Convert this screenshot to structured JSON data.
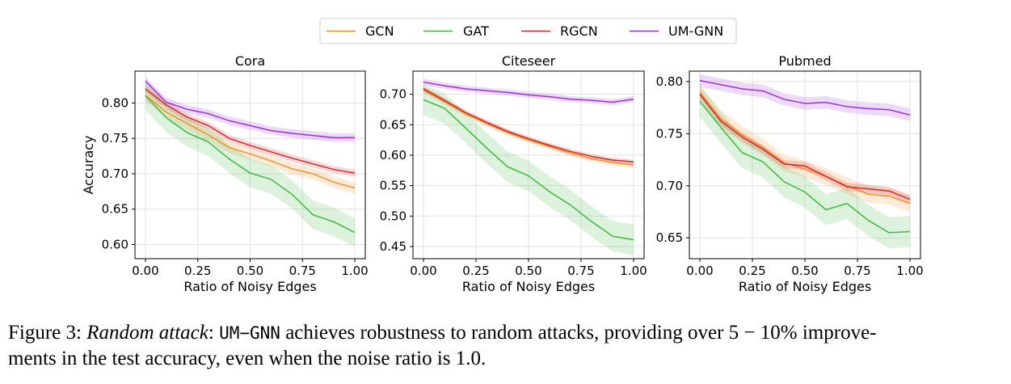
{
  "legend": {
    "entries": [
      {
        "name": "GCN",
        "color": "#f28e2b"
      },
      {
        "name": "GAT",
        "color": "#3cb93c"
      },
      {
        "name": "RGCN",
        "color": "#d62728"
      },
      {
        "name": "UM-GNN",
        "color": "#9b30d9"
      }
    ]
  },
  "chart_data": [
    {
      "type": "line",
      "title": "Cora",
      "xlabel": "Ratio of Noisy Edges",
      "ylabel": "Accuracy",
      "xlim": [
        -0.05,
        1.05
      ],
      "ylim": [
        0.58,
        0.845
      ],
      "xticks": [
        0.0,
        0.25,
        0.5,
        0.75,
        1.0
      ],
      "xtick_labels": [
        "0.00",
        "0.25",
        "0.50",
        "0.75",
        "1.00"
      ],
      "yticks": [
        0.6,
        0.65,
        0.7,
        0.75,
        0.8
      ],
      "ytick_labels": [
        "0.60",
        "0.65",
        "0.70",
        "0.75",
        "0.80"
      ],
      "grid": true,
      "x": [
        0.0,
        0.1,
        0.2,
        0.3,
        0.4,
        0.5,
        0.6,
        0.7,
        0.8,
        0.9,
        1.0
      ],
      "series": [
        {
          "name": "GCN",
          "color": "#f28e2b",
          "values": [
            0.811,
            0.787,
            0.771,
            0.755,
            0.737,
            0.728,
            0.718,
            0.707,
            0.7,
            0.688,
            0.68
          ],
          "band": 0.008
        },
        {
          "name": "GAT",
          "color": "#3cb93c",
          "values": [
            0.81,
            0.779,
            0.758,
            0.745,
            0.721,
            0.701,
            0.692,
            0.671,
            0.642,
            0.632,
            0.617
          ],
          "band": 0.02
        },
        {
          "name": "RGCN",
          "color": "#d62728",
          "values": [
            0.82,
            0.797,
            0.78,
            0.768,
            0.75,
            0.74,
            0.731,
            0.722,
            0.714,
            0.706,
            0.701
          ],
          "band": 0.005
        },
        {
          "name": "UM-GNN",
          "color": "#9b30d9",
          "values": [
            0.831,
            0.801,
            0.791,
            0.785,
            0.775,
            0.768,
            0.761,
            0.757,
            0.754,
            0.751,
            0.751
          ],
          "band": 0.006
        }
      ]
    },
    {
      "type": "line",
      "title": "Citeseer",
      "xlabel": "Ratio of Noisy Edges",
      "ylabel": "",
      "xlim": [
        -0.05,
        1.05
      ],
      "ylim": [
        0.43,
        0.738
      ],
      "xticks": [
        0.0,
        0.25,
        0.5,
        0.75,
        1.0
      ],
      "xtick_labels": [
        "0.00",
        "0.25",
        "0.50",
        "0.75",
        "1.00"
      ],
      "yticks": [
        0.45,
        0.5,
        0.55,
        0.6,
        0.65,
        0.7
      ],
      "ytick_labels": [
        "0.45",
        "0.50",
        "0.55",
        "0.60",
        "0.65",
        "0.70"
      ],
      "grid": true,
      "x": [
        0.0,
        0.1,
        0.2,
        0.3,
        0.4,
        0.5,
        0.6,
        0.7,
        0.8,
        0.9,
        1.0
      ],
      "series": [
        {
          "name": "GCN",
          "color": "#f28e2b",
          "values": [
            0.707,
            0.688,
            0.668,
            0.652,
            0.637,
            0.625,
            0.614,
            0.603,
            0.594,
            0.588,
            0.584
          ],
          "band": 0.005
        },
        {
          "name": "GAT",
          "color": "#3cb93c",
          "values": [
            0.691,
            0.677,
            0.645,
            0.612,
            0.581,
            0.566,
            0.54,
            0.518,
            0.491,
            0.467,
            0.461
          ],
          "band": 0.025
        },
        {
          "name": "RGCN",
          "color": "#d62728",
          "values": [
            0.709,
            0.69,
            0.67,
            0.654,
            0.639,
            0.627,
            0.616,
            0.606,
            0.598,
            0.592,
            0.589
          ],
          "band": 0.004
        },
        {
          "name": "UM-GNN",
          "color": "#9b30d9",
          "values": [
            0.72,
            0.714,
            0.709,
            0.706,
            0.703,
            0.699,
            0.696,
            0.692,
            0.69,
            0.687,
            0.692
          ],
          "band": 0.005
        }
      ]
    },
    {
      "type": "line",
      "title": "Pubmed",
      "xlabel": "Ratio of Noisy Edges",
      "ylabel": "",
      "xlim": [
        -0.05,
        1.05
      ],
      "ylim": [
        0.63,
        0.81
      ],
      "xticks": [
        0.0,
        0.25,
        0.5,
        0.75,
        1.0
      ],
      "xtick_labels": [
        "0.00",
        "0.25",
        "0.50",
        "0.75",
        "1.00"
      ],
      "yticks": [
        0.65,
        0.7,
        0.75,
        0.8
      ],
      "ytick_labels": [
        "0.65",
        "0.70",
        "0.75",
        "0.80"
      ],
      "grid": true,
      "x": [
        0.0,
        0.1,
        0.2,
        0.3,
        0.4,
        0.5,
        0.6,
        0.7,
        0.8,
        0.9,
        1.0
      ],
      "series": [
        {
          "name": "GCN",
          "color": "#f28e2b",
          "values": [
            0.789,
            0.764,
            0.749,
            0.737,
            0.722,
            0.716,
            0.709,
            0.7,
            0.692,
            0.69,
            0.683
          ],
          "band": 0.008
        },
        {
          "name": "GAT",
          "color": "#3cb93c",
          "values": [
            0.781,
            0.756,
            0.732,
            0.723,
            0.704,
            0.694,
            0.677,
            0.683,
            0.667,
            0.655,
            0.656
          ],
          "band": 0.015
        },
        {
          "name": "RGCN",
          "color": "#d62728",
          "values": [
            0.788,
            0.762,
            0.747,
            0.735,
            0.721,
            0.719,
            0.709,
            0.699,
            0.697,
            0.695,
            0.687
          ],
          "band": 0.004
        },
        {
          "name": "UM-GNN",
          "color": "#9b30d9",
          "values": [
            0.801,
            0.797,
            0.793,
            0.791,
            0.783,
            0.779,
            0.78,
            0.776,
            0.774,
            0.773,
            0.768
          ],
          "band": 0.006
        }
      ]
    }
  ],
  "caption": {
    "prefix": "Figure 3: ",
    "italic": "Random attack",
    "colon": ": ",
    "model": "UM−GNN",
    "rest_line1": " achieves robustness to random attacks, providing over 5 − 10% improve-",
    "line2": "ments in the test accuracy, even when the noise ratio is 1.0."
  }
}
